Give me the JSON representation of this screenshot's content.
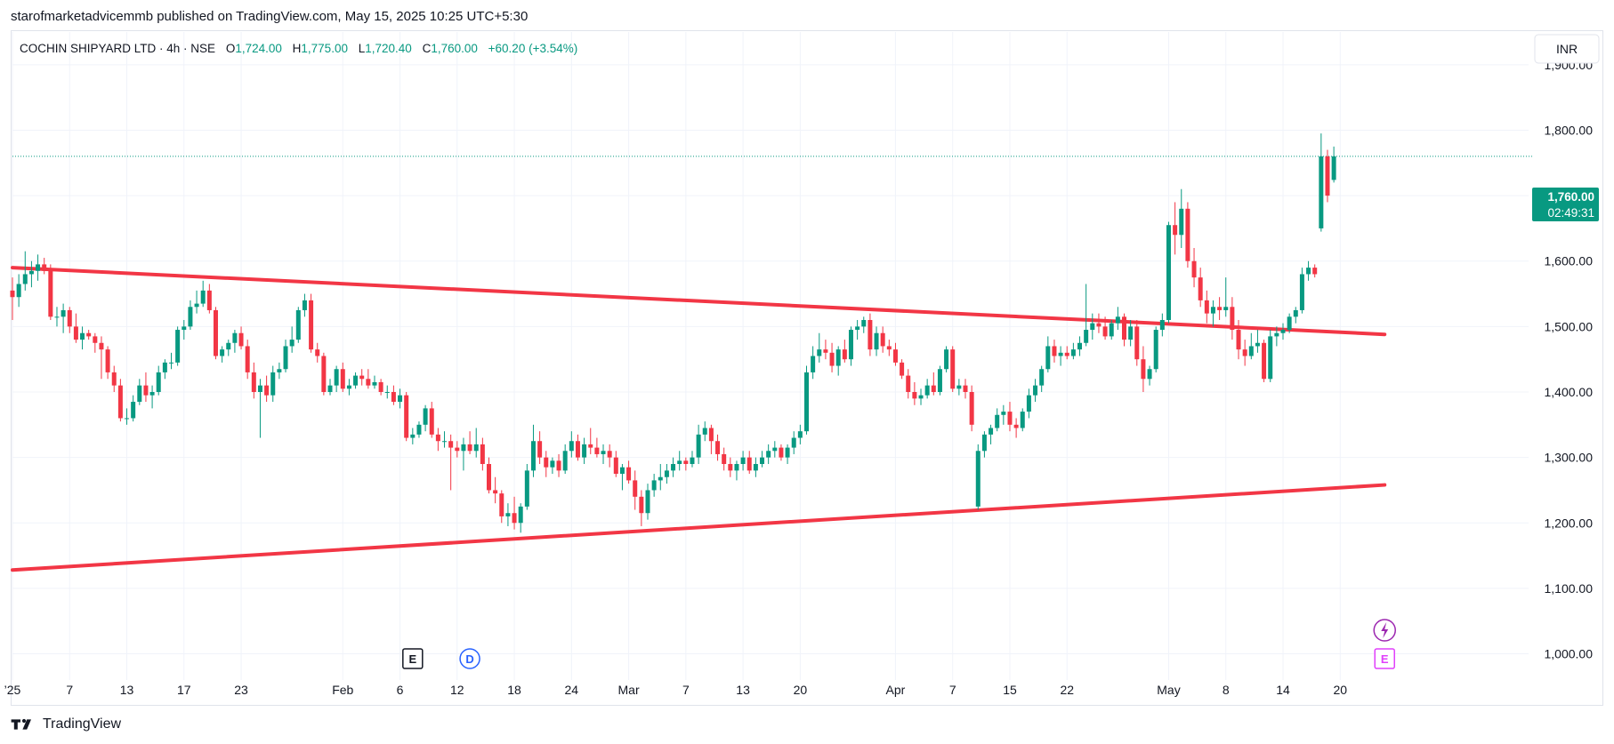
{
  "header": {
    "published_line": "starofmarketadvicemmb published on TradingView.com, May 15, 2025 10:25 UTC+5:30"
  },
  "legend": {
    "symbol": "COCHIN SHIPYARD LTD · 4h · NSE",
    "open_label": "O",
    "open_value": "1,724.00",
    "high_label": "H",
    "high_value": "1,775.00",
    "low_label": "L",
    "low_value": "1,720.40",
    "close_label": "C",
    "close_value": "1,760.00",
    "change": "+60.20 (+3.54%)"
  },
  "currency_button": "INR",
  "price_tag": {
    "price": "1,760.00",
    "countdown": "02:49:31"
  },
  "event_markers": {
    "earnings": "E",
    "dividend": "D",
    "earnings_upcoming": "E"
  },
  "footer": {
    "brand": "TradingView"
  },
  "colors": {
    "up": "#089981",
    "down": "#f23645",
    "trendline": "#f23645",
    "grid": "#f0f3fa",
    "axis_text": "#131722",
    "last_price_line": "#089981",
    "upcoming_event": "#e040fb",
    "dividend": "#2962ff"
  },
  "chart_data": {
    "type": "candlestick",
    "title": "COCHIN SHIPYARD LTD · 4h · NSE",
    "y_axis": {
      "min": 960,
      "max": 1950,
      "ticks": [
        "1,000.00",
        "1,100.00",
        "1,200.00",
        "1,300.00",
        "1,400.00",
        "1,500.00",
        "1,600.00",
        "1,700.00",
        "1,800.00",
        "1,900.00"
      ],
      "tick_values": [
        1000,
        1100,
        1200,
        1300,
        1400,
        1500,
        1600,
        1700,
        1800,
        1900
      ]
    },
    "x_axis_labels": [
      {
        "label": "’25",
        "index": 0
      },
      {
        "label": "7",
        "index": 9
      },
      {
        "label": "13",
        "index": 18
      },
      {
        "label": "17",
        "index": 27
      },
      {
        "label": "23",
        "index": 36
      },
      {
        "label": "Feb",
        "index": 52
      },
      {
        "label": "6",
        "index": 61
      },
      {
        "label": "12",
        "index": 70
      },
      {
        "label": "18",
        "index": 79
      },
      {
        "label": "24",
        "index": 88
      },
      {
        "label": "Mar",
        "index": 97
      },
      {
        "label": "7",
        "index": 106
      },
      {
        "label": "13",
        "index": 115
      },
      {
        "label": "20",
        "index": 124
      },
      {
        "label": "Apr",
        "index": 139
      },
      {
        "label": "7",
        "index": 148
      },
      {
        "label": "15",
        "index": 157
      },
      {
        "label": "22",
        "index": 166
      },
      {
        "label": "May",
        "index": 182
      },
      {
        "label": "8",
        "index": 191
      },
      {
        "label": "14",
        "index": 200
      },
      {
        "label": "20",
        "index": 209
      }
    ],
    "last_price": 1760,
    "candles": [
      [
        1555,
        1575,
        1510,
        1545
      ],
      [
        1545,
        1580,
        1530,
        1565
      ],
      [
        1565,
        1615,
        1555,
        1580
      ],
      [
        1580,
        1600,
        1560,
        1585
      ],
      [
        1585,
        1610,
        1570,
        1595
      ],
      [
        1595,
        1605,
        1580,
        1585
      ],
      [
        1585,
        1595,
        1510,
        1515
      ],
      [
        1515,
        1530,
        1500,
        1515
      ],
      [
        1515,
        1535,
        1490,
        1525
      ],
      [
        1525,
        1530,
        1490,
        1500
      ],
      [
        1500,
        1520,
        1475,
        1480
      ],
      [
        1480,
        1500,
        1465,
        1490
      ],
      [
        1490,
        1495,
        1480,
        1485
      ],
      [
        1485,
        1490,
        1460,
        1475
      ],
      [
        1475,
        1485,
        1420,
        1465
      ],
      [
        1465,
        1470,
        1420,
        1430
      ],
      [
        1430,
        1440,
        1400,
        1410
      ],
      [
        1410,
        1420,
        1355,
        1360
      ],
      [
        1360,
        1375,
        1350,
        1360
      ],
      [
        1360,
        1395,
        1355,
        1385
      ],
      [
        1385,
        1420,
        1380,
        1410
      ],
      [
        1410,
        1430,
        1385,
        1395
      ],
      [
        1395,
        1410,
        1375,
        1400
      ],
      [
        1400,
        1440,
        1395,
        1430
      ],
      [
        1430,
        1450,
        1420,
        1445
      ],
      [
        1445,
        1460,
        1435,
        1445
      ],
      [
        1445,
        1500,
        1440,
        1495
      ],
      [
        1495,
        1510,
        1480,
        1500
      ],
      [
        1500,
        1540,
        1495,
        1530
      ],
      [
        1530,
        1555,
        1520,
        1535
      ],
      [
        1535,
        1570,
        1530,
        1555
      ],
      [
        1555,
        1565,
        1520,
        1525
      ],
      [
        1525,
        1530,
        1450,
        1455
      ],
      [
        1455,
        1470,
        1445,
        1465
      ],
      [
        1465,
        1480,
        1455,
        1475
      ],
      [
        1475,
        1495,
        1460,
        1490
      ],
      [
        1490,
        1500,
        1465,
        1470
      ],
      [
        1470,
        1480,
        1420,
        1430
      ],
      [
        1430,
        1445,
        1390,
        1400
      ],
      [
        1400,
        1420,
        1330,
        1410
      ],
      [
        1410,
        1425,
        1385,
        1395
      ],
      [
        1395,
        1440,
        1385,
        1430
      ],
      [
        1430,
        1445,
        1420,
        1435
      ],
      [
        1435,
        1480,
        1430,
        1470
      ],
      [
        1470,
        1500,
        1460,
        1480
      ],
      [
        1480,
        1530,
        1475,
        1525
      ],
      [
        1525,
        1550,
        1515,
        1540
      ],
      [
        1540,
        1550,
        1460,
        1465
      ],
      [
        1465,
        1475,
        1445,
        1455
      ],
      [
        1455,
        1460,
        1395,
        1400
      ],
      [
        1400,
        1420,
        1395,
        1410
      ],
      [
        1410,
        1440,
        1400,
        1435
      ],
      [
        1435,
        1445,
        1400,
        1405
      ],
      [
        1405,
        1420,
        1395,
        1410
      ],
      [
        1410,
        1430,
        1405,
        1425
      ],
      [
        1425,
        1435,
        1410,
        1420
      ],
      [
        1420,
        1435,
        1405,
        1410
      ],
      [
        1410,
        1425,
        1405,
        1415
      ],
      [
        1415,
        1420,
        1395,
        1400
      ],
      [
        1400,
        1410,
        1390,
        1400
      ],
      [
        1400,
        1410,
        1380,
        1385
      ],
      [
        1385,
        1405,
        1375,
        1395
      ],
      [
        1395,
        1400,
        1325,
        1330
      ],
      [
        1330,
        1345,
        1320,
        1335
      ],
      [
        1335,
        1355,
        1330,
        1350
      ],
      [
        1350,
        1380,
        1340,
        1375
      ],
      [
        1375,
        1385,
        1330,
        1335
      ],
      [
        1335,
        1345,
        1310,
        1325
      ],
      [
        1325,
        1340,
        1315,
        1325
      ],
      [
        1325,
        1335,
        1250,
        1315
      ],
      [
        1315,
        1325,
        1300,
        1310
      ],
      [
        1310,
        1330,
        1280,
        1320
      ],
      [
        1320,
        1340,
        1305,
        1310
      ],
      [
        1310,
        1345,
        1300,
        1320
      ],
      [
        1320,
        1330,
        1280,
        1290
      ],
      [
        1290,
        1300,
        1245,
        1250
      ],
      [
        1250,
        1270,
        1230,
        1245
      ],
      [
        1245,
        1250,
        1200,
        1210
      ],
      [
        1210,
        1230,
        1195,
        1215
      ],
      [
        1215,
        1240,
        1190,
        1200
      ],
      [
        1200,
        1230,
        1185,
        1225
      ],
      [
        1225,
        1290,
        1220,
        1280
      ],
      [
        1280,
        1350,
        1270,
        1325
      ],
      [
        1325,
        1340,
        1290,
        1300
      ],
      [
        1300,
        1310,
        1270,
        1285
      ],
      [
        1285,
        1300,
        1275,
        1295
      ],
      [
        1295,
        1305,
        1270,
        1280
      ],
      [
        1280,
        1320,
        1275,
        1310
      ],
      [
        1310,
        1340,
        1300,
        1325
      ],
      [
        1325,
        1335,
        1295,
        1300
      ],
      [
        1300,
        1330,
        1290,
        1320
      ],
      [
        1320,
        1345,
        1305,
        1315
      ],
      [
        1315,
        1330,
        1300,
        1305
      ],
      [
        1305,
        1320,
        1290,
        1310
      ],
      [
        1310,
        1320,
        1285,
        1300
      ],
      [
        1300,
        1310,
        1270,
        1275
      ],
      [
        1275,
        1290,
        1250,
        1285
      ],
      [
        1285,
        1295,
        1260,
        1265
      ],
      [
        1265,
        1280,
        1220,
        1240
      ],
      [
        1240,
        1250,
        1195,
        1215
      ],
      [
        1215,
        1260,
        1205,
        1250
      ],
      [
        1250,
        1275,
        1240,
        1265
      ],
      [
        1265,
        1290,
        1250,
        1270
      ],
      [
        1270,
        1290,
        1260,
        1280
      ],
      [
        1280,
        1300,
        1270,
        1290
      ],
      [
        1290,
        1310,
        1280,
        1295
      ],
      [
        1295,
        1300,
        1280,
        1290
      ],
      [
        1290,
        1310,
        1285,
        1300
      ],
      [
        1300,
        1350,
        1290,
        1335
      ],
      [
        1335,
        1355,
        1325,
        1345
      ],
      [
        1345,
        1350,
        1305,
        1325
      ],
      [
        1325,
        1335,
        1295,
        1305
      ],
      [
        1305,
        1315,
        1280,
        1290
      ],
      [
        1290,
        1300,
        1270,
        1280
      ],
      [
        1280,
        1295,
        1265,
        1290
      ],
      [
        1290,
        1310,
        1280,
        1300
      ],
      [
        1300,
        1310,
        1275,
        1280
      ],
      [
        1280,
        1300,
        1270,
        1290
      ],
      [
        1290,
        1310,
        1285,
        1300
      ],
      [
        1300,
        1320,
        1290,
        1310
      ],
      [
        1310,
        1325,
        1300,
        1315
      ],
      [
        1315,
        1320,
        1295,
        1300
      ],
      [
        1300,
        1320,
        1290,
        1315
      ],
      [
        1315,
        1340,
        1305,
        1330
      ],
      [
        1330,
        1350,
        1320,
        1340
      ],
      [
        1340,
        1440,
        1335,
        1430
      ],
      [
        1430,
        1470,
        1420,
        1455
      ],
      [
        1455,
        1490,
        1445,
        1465
      ],
      [
        1465,
        1480,
        1450,
        1460
      ],
      [
        1460,
        1475,
        1430,
        1440
      ],
      [
        1440,
        1470,
        1425,
        1465
      ],
      [
        1465,
        1480,
        1445,
        1450
      ],
      [
        1450,
        1500,
        1440,
        1495
      ],
      [
        1495,
        1510,
        1480,
        1500
      ],
      [
        1500,
        1515,
        1490,
        1510
      ],
      [
        1510,
        1520,
        1455,
        1465
      ],
      [
        1465,
        1500,
        1455,
        1490
      ],
      [
        1490,
        1500,
        1460,
        1470
      ],
      [
        1470,
        1480,
        1455,
        1465
      ],
      [
        1465,
        1475,
        1440,
        1445
      ],
      [
        1445,
        1450,
        1420,
        1425
      ],
      [
        1425,
        1435,
        1390,
        1400
      ],
      [
        1400,
        1415,
        1380,
        1390
      ],
      [
        1390,
        1405,
        1380,
        1395
      ],
      [
        1395,
        1420,
        1390,
        1410
      ],
      [
        1410,
        1430,
        1395,
        1400
      ],
      [
        1400,
        1440,
        1395,
        1435
      ],
      [
        1435,
        1470,
        1430,
        1465
      ],
      [
        1465,
        1470,
        1400,
        1405
      ],
      [
        1405,
        1420,
        1395,
        1410
      ],
      [
        1410,
        1420,
        1390,
        1400
      ],
      [
        1400,
        1410,
        1340,
        1350
      ],
      [
        1225,
        1320,
        1220,
        1310
      ],
      [
        1310,
        1340,
        1300,
        1335
      ],
      [
        1335,
        1350,
        1320,
        1345
      ],
      [
        1345,
        1375,
        1340,
        1365
      ],
      [
        1365,
        1380,
        1350,
        1370
      ],
      [
        1370,
        1385,
        1340,
        1350
      ],
      [
        1350,
        1360,
        1330,
        1345
      ],
      [
        1345,
        1375,
        1340,
        1370
      ],
      [
        1370,
        1405,
        1360,
        1395
      ],
      [
        1395,
        1420,
        1385,
        1410
      ],
      [
        1410,
        1440,
        1400,
        1435
      ],
      [
        1435,
        1485,
        1430,
        1470
      ],
      [
        1470,
        1480,
        1445,
        1455
      ],
      [
        1455,
        1470,
        1440,
        1460
      ],
      [
        1460,
        1470,
        1450,
        1455
      ],
      [
        1455,
        1475,
        1450,
        1465
      ],
      [
        1465,
        1485,
        1455,
        1475
      ],
      [
        1475,
        1565,
        1470,
        1495
      ],
      [
        1495,
        1520,
        1480,
        1505
      ],
      [
        1505,
        1520,
        1490,
        1500
      ],
      [
        1500,
        1515,
        1480,
        1485
      ],
      [
        1485,
        1510,
        1480,
        1505
      ],
      [
        1505,
        1530,
        1495,
        1515
      ],
      [
        1515,
        1520,
        1470,
        1480
      ],
      [
        1480,
        1510,
        1470,
        1500
      ],
      [
        1500,
        1510,
        1440,
        1450
      ],
      [
        1450,
        1470,
        1400,
        1420
      ],
      [
        1420,
        1440,
        1410,
        1435
      ],
      [
        1435,
        1500,
        1430,
        1495
      ],
      [
        1495,
        1520,
        1485,
        1510
      ],
      [
        1510,
        1660,
        1505,
        1655
      ],
      [
        1655,
        1690,
        1610,
        1640
      ],
      [
        1640,
        1710,
        1620,
        1680
      ],
      [
        1680,
        1690,
        1590,
        1600
      ],
      [
        1600,
        1620,
        1560,
        1575
      ],
      [
        1575,
        1590,
        1530,
        1540
      ],
      [
        1540,
        1555,
        1505,
        1520
      ],
      [
        1520,
        1540,
        1500,
        1530
      ],
      [
        1530,
        1545,
        1510,
        1525
      ],
      [
        1525,
        1575,
        1515,
        1530
      ],
      [
        1530,
        1545,
        1480,
        1495
      ],
      [
        1495,
        1510,
        1450,
        1465
      ],
      [
        1465,
        1480,
        1440,
        1455
      ],
      [
        1455,
        1490,
        1450,
        1470
      ],
      [
        1470,
        1495,
        1460,
        1475
      ],
      [
        1475,
        1480,
        1415,
        1420
      ],
      [
        1420,
        1495,
        1415,
        1485
      ],
      [
        1485,
        1500,
        1470,
        1490
      ],
      [
        1490,
        1505,
        1480,
        1495
      ],
      [
        1495,
        1520,
        1490,
        1515
      ],
      [
        1515,
        1530,
        1505,
        1525
      ],
      [
        1525,
        1590,
        1520,
        1580
      ],
      [
        1580,
        1600,
        1570,
        1590
      ],
      [
        1590,
        1595,
        1575,
        1580
      ],
      [
        1650,
        1795,
        1645,
        1760
      ],
      [
        1760,
        1770,
        1690,
        1700
      ],
      [
        1724,
        1775,
        1720,
        1760
      ]
    ],
    "trendlines": [
      {
        "name": "upper",
        "points": [
          [
            0,
            1590
          ],
          [
            216,
            1488
          ]
        ]
      },
      {
        "name": "lower",
        "points": [
          [
            0,
            1128
          ],
          [
            216,
            1258
          ]
        ]
      }
    ],
    "event_indices": {
      "earnings": 63,
      "dividend": 72,
      "upcoming": 216
    }
  }
}
